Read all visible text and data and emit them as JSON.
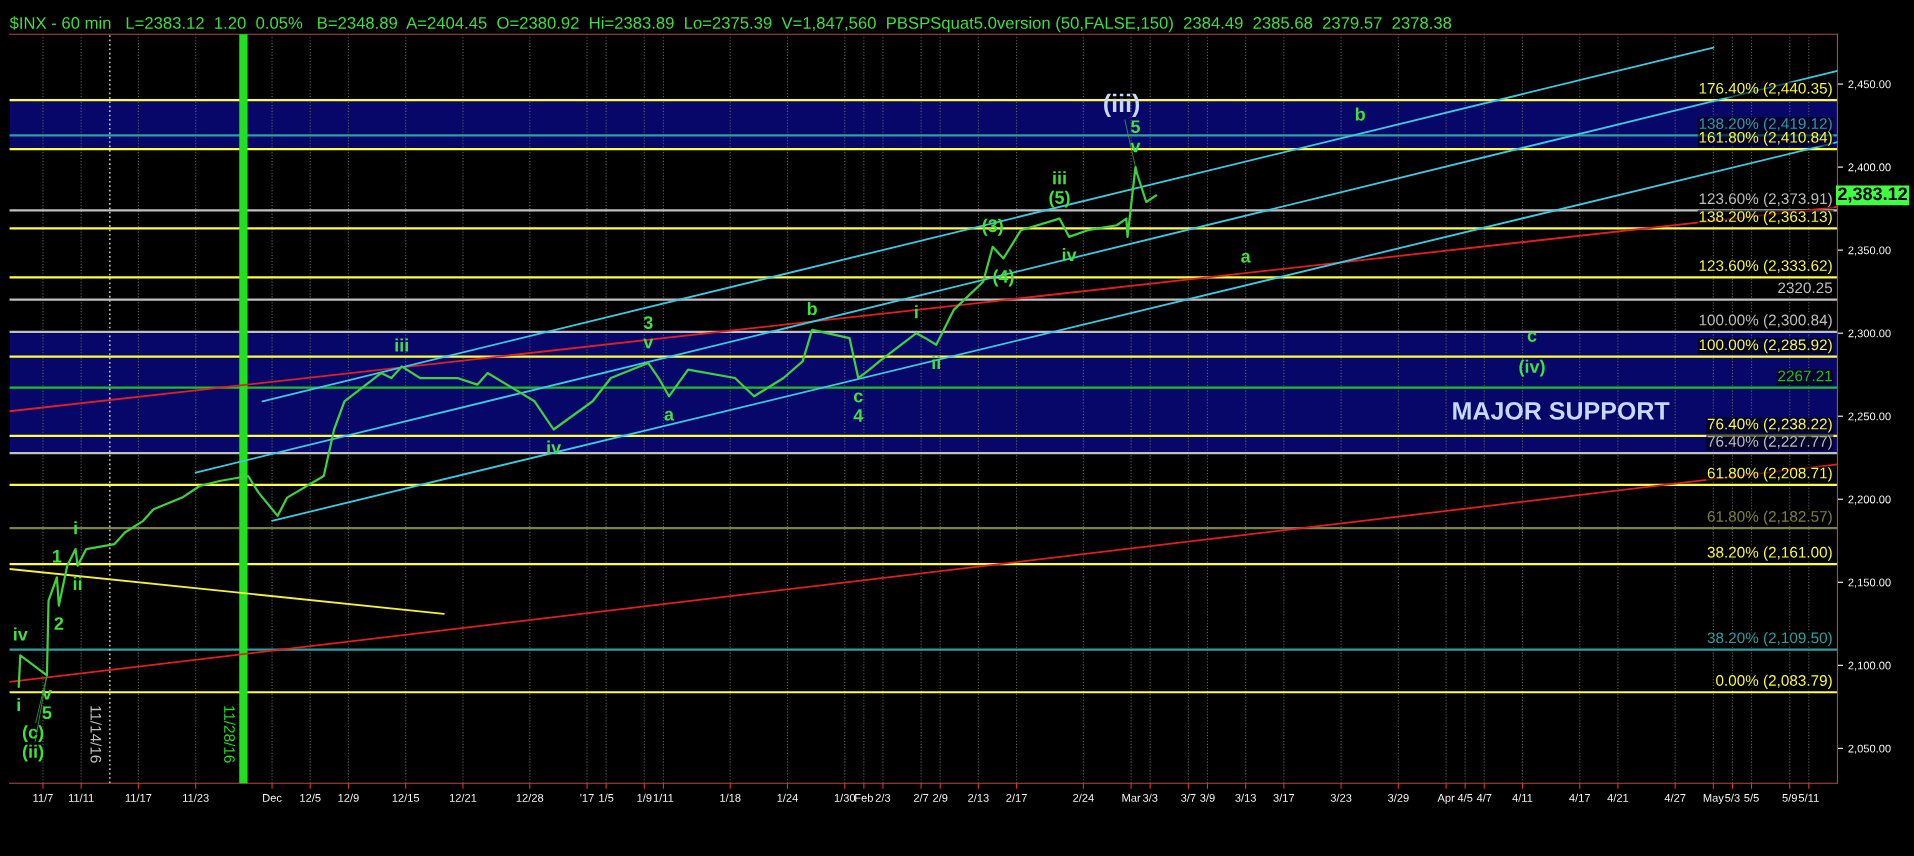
{
  "chart_data": {
    "type": "line",
    "title": "$INX - 60 min   L=2383.12  1.20  0.05%   B=2348.89  A=2404.45  O=2380.92  Hi=2383.89  Lo=2375.39  V=1,847,560  PBSPSquat5.0version (50,FALSE,150)  2384.49  2385.68  2379.57  2378.38",
    "xlim": [
      "2016-11-03T12:00",
      "2017-05-14"
    ],
    "ylim": [
      2029,
      2480
    ],
    "xticks": [
      {
        "value": "2016-11-07",
        "label": "11/7"
      },
      {
        "value": "2016-11-11",
        "label": "11/11"
      },
      {
        "value": "2016-11-17",
        "label": "11/17"
      },
      {
        "value": "2016-11-23",
        "label": "11/23"
      },
      {
        "value": "2016-12-01",
        "label": "Dec"
      },
      {
        "value": "2016-12-05",
        "label": "12/5"
      },
      {
        "value": "2016-12-09",
        "label": "12/9"
      },
      {
        "value": "2016-12-15",
        "label": "12/15"
      },
      {
        "value": "2016-12-21",
        "label": "12/21"
      },
      {
        "value": "2016-12-28",
        "label": "12/28"
      },
      {
        "value": "2017-01-03",
        "label": "'17"
      },
      {
        "value": "2017-01-05",
        "label": "1/5"
      },
      {
        "value": "2017-01-09",
        "label": "1/9"
      },
      {
        "value": "2017-01-11",
        "label": "1/11"
      },
      {
        "value": "2017-01-18",
        "label": "1/18"
      },
      {
        "value": "2017-01-24",
        "label": "1/24"
      },
      {
        "value": "2017-01-30",
        "label": "1/30"
      },
      {
        "value": "2017-02-01",
        "label": "Feb"
      },
      {
        "value": "2017-02-03",
        "label": "2/3"
      },
      {
        "value": "2017-02-07",
        "label": "2/7"
      },
      {
        "value": "2017-02-09",
        "label": "2/9"
      },
      {
        "value": "2017-02-13",
        "label": "2/13"
      },
      {
        "value": "2017-02-17",
        "label": "2/17"
      },
      {
        "value": "2017-02-24",
        "label": "2/24"
      },
      {
        "value": "2017-03-01",
        "label": "Mar"
      },
      {
        "value": "2017-03-03",
        "label": "3/3"
      },
      {
        "value": "2017-03-07",
        "label": "3/7"
      },
      {
        "value": "2017-03-09",
        "label": "3/9"
      },
      {
        "value": "2017-03-13",
        "label": "3/13"
      },
      {
        "value": "2017-03-17",
        "label": "3/17"
      },
      {
        "value": "2017-03-23",
        "label": "3/23"
      },
      {
        "value": "2017-03-29",
        "label": "3/29"
      },
      {
        "value": "2017-04-03",
        "label": "Apr"
      },
      {
        "value": "2017-04-05",
        "label": "4/5"
      },
      {
        "value": "2017-04-07",
        "label": "4/7"
      },
      {
        "value": "2017-04-11",
        "label": "4/11"
      },
      {
        "value": "2017-04-17",
        "label": "4/17"
      },
      {
        "value": "2017-04-21",
        "label": "4/21"
      },
      {
        "value": "2017-04-27",
        "label": "4/27"
      },
      {
        "value": "2017-05-01",
        "label": "May"
      },
      {
        "value": "2017-05-03",
        "label": "5/3"
      },
      {
        "value": "2017-05-05",
        "label": "5/5"
      },
      {
        "value": "2017-05-09",
        "label": "5/9"
      },
      {
        "value": "2017-05-11",
        "label": "5/11"
      }
    ],
    "yticks": [
      {
        "value": 2050,
        "label": "2,050.00"
      },
      {
        "value": 2100,
        "label": "2,100.00"
      },
      {
        "value": 2150,
        "label": "2,150.00"
      },
      {
        "value": 2200,
        "label": "2,200.00"
      },
      {
        "value": 2250,
        "label": "2,250.00"
      },
      {
        "value": 2300,
        "label": "2,300.00"
      },
      {
        "value": 2350,
        "label": "2,350.00"
      },
      {
        "value": 2400,
        "label": "2,400.00"
      },
      {
        "value": 2450,
        "label": "2,450.00"
      }
    ],
    "grid": "x",
    "marker": "none",
    "line_style": "solid",
    "series": [
      {
        "color": "#40d040",
        "x": [
          "2016-11-04T11:00",
          "2016-11-04T15:00",
          "2016-11-07T10:00",
          "2016-11-07T14:00",
          "2016-11-08T11:00",
          "2016-11-08T16:00",
          "2016-11-09T13:00",
          "2016-11-10T10:00",
          "2016-11-10T15:00",
          "2016-11-11T13:00",
          "2016-11-14T12:00",
          "2016-11-15T14:00",
          "2016-11-17T12:00",
          "2016-11-18T14:00",
          "2016-11-21T14:00",
          "2016-11-23T10:00",
          "2016-11-25T12:00",
          "2016-11-28T12:00",
          "2016-11-29T14:00",
          "2016-12-01T14:00",
          "2016-12-02T14:00",
          "2016-12-06T10:00",
          "2016-12-07T12:00",
          "2016-12-08T14:00",
          "2016-12-12T10:00",
          "2016-12-13T12:00",
          "2016-12-14T14:00",
          "2016-12-16T12:00",
          "2016-12-20T10:00",
          "2016-12-22T12:00",
          "2016-12-23T14:00",
          "2016-12-28T12:00",
          "2016-12-30T12:00",
          "2017-01-03T14:00",
          "2017-01-05T12:00",
          "2017-01-09T10:00",
          "2017-01-10T12:00",
          "2017-01-11T14:00",
          "2017-01-13T14:00",
          "2017-01-18T12:00",
          "2017-01-20T12:00",
          "2017-01-23T14:00",
          "2017-01-25T14:00",
          "2017-01-26T14:00",
          "2017-01-30T12:00",
          "2017-01-31T10:00",
          "2017-02-01T14:00",
          "2017-02-02T15:00",
          "2017-02-06T12:00",
          "2017-02-07T11:00",
          "2017-02-08T14:00",
          "2017-02-10T10:00",
          "2017-02-13T12:00",
          "2017-02-14T12:00",
          "2017-02-15T15:00",
          "2017-02-17T11:00",
          "2017-02-21T12:00",
          "2017-02-22T12:00",
          "2017-02-24T11:00",
          "2017-02-27T12:00",
          "2017-02-28T12:00",
          "2017-02-28T15:00",
          "2017-03-01T11:00",
          "2017-03-01T15:00",
          "2017-03-02T14:00",
          "2017-03-03T15:00"
        ],
        "values": [
          2087,
          2106,
          2094,
          2139,
          2153,
          2136,
          2160,
          2170,
          2160,
          2170,
          2173,
          2180,
          2187,
          2194,
          2201,
          2208,
          2211,
          2214,
          2204,
          2190,
          2201,
          2214,
          2242,
          2259,
          2276,
          2273,
          2280,
          2273,
          2273,
          2269,
          2276,
          2259,
          2242,
          2259,
          2273,
          2282,
          2273,
          2262,
          2278,
          2273,
          2262,
          2273,
          2283,
          2302,
          2297,
          2273,
          2278,
          2283,
          2300,
          2297,
          2293,
          2314,
          2331,
          2352,
          2345,
          2362,
          2369,
          2358,
          2362,
          2365,
          2369,
          2358,
          2400,
          2396,
          2379,
          2383
        ]
      },
      {
        "type": "line",
        "color": "#e02020",
        "x": [
          "2016-11-03T12:00",
          "2017-05-14"
        ],
        "values": [
          2253,
          2376
        ]
      },
      {
        "type": "line",
        "color": "#e02020",
        "x": [
          "2016-11-03T12:00",
          "2017-05-14"
        ],
        "values": [
          2090,
          2221
        ]
      },
      {
        "type": "line",
        "color": "#f0f040",
        "x": [
          "2016-11-03T12:00",
          "2016-12-19"
        ],
        "values": [
          2158,
          2131
        ]
      },
      {
        "type": "line",
        "color": "#40c8e0",
        "x": [
          "2016-11-30",
          "2017-05-01"
        ],
        "values": [
          2259,
          2472
        ]
      },
      {
        "type": "line",
        "color": "#40c8e0",
        "x": [
          "2016-11-23",
          "2017-05-14"
        ],
        "values": [
          2216,
          2458
        ]
      },
      {
        "type": "line",
        "color": "#40c8e0",
        "x": [
          "2016-12-01",
          "2017-05-14"
        ],
        "values": [
          2187,
          2415
        ]
      }
    ],
    "bands": [
      {
        "axis": "y",
        "from": 2410.84,
        "to": 2440.35,
        "color": "#0a0a8c"
      },
      {
        "axis": "y",
        "from": 2227.77,
        "to": 2300.84,
        "color": "#0a0a8c"
      }
    ],
    "ref_lines": [
      {
        "axis": "y",
        "value": 2440.35,
        "label": "176.40% (2,440.35)",
        "color": "#ffff40"
      },
      {
        "axis": "y",
        "value": 2419.12,
        "label": "138.20% (2,419.12)",
        "color": "#2f9f9f"
      },
      {
        "axis": "y",
        "value": 2410.84,
        "label": "161.80% (2,410.84)",
        "color": "#ffff40"
      },
      {
        "axis": "y",
        "value": 2373.91,
        "label": "123.60% (2,373.91)",
        "color": "#c0c0c0"
      },
      {
        "axis": "y",
        "value": 2363.13,
        "label": "138.20% (2,363.13)",
        "color": "#ffff40"
      },
      {
        "axis": "y",
        "value": 2333.62,
        "label": "123.60% (2,333.62)",
        "color": "#ffff40"
      },
      {
        "axis": "y",
        "value": 2320.25,
        "label": "2320.25",
        "color": "#c0c0c0"
      },
      {
        "axis": "y",
        "value": 2300.84,
        "label": "100.00% (2,300.84)",
        "color": "#c0c0c0"
      },
      {
        "axis": "y",
        "value": 2285.92,
        "label": "100.00% (2,285.92)",
        "color": "#ffff40"
      },
      {
        "axis": "y",
        "value": 2267.21,
        "label": "2267.21",
        "color": "#20c020"
      },
      {
        "axis": "y",
        "value": 2238.22,
        "label": "76.40% (2,238.22)",
        "color": "#ffff40"
      },
      {
        "axis": "y",
        "value": 2227.77,
        "label": "76.40% (2,227.77)",
        "color": "#c0c0c0"
      },
      {
        "axis": "y",
        "value": 2208.71,
        "label": "61.80% (2,208.71)",
        "color": "#ffff40"
      },
      {
        "axis": "y",
        "value": 2182.57,
        "label": "61.80% (2,182.57)",
        "color": "#808040"
      },
      {
        "axis": "y",
        "value": 2161.0,
        "label": "38.20% (2,161.00)",
        "color": "#ffff40"
      },
      {
        "axis": "y",
        "value": 2109.5,
        "label": "38.20% (2,109.50)",
        "color": "#2f9f9f"
      },
      {
        "axis": "y",
        "value": 2083.79,
        "label": "0.00% (2,083.79)",
        "color": "#ffff40"
      },
      {
        "axis": "x",
        "value": "2016-11-14",
        "label": "11/14/16",
        "color": "#c0c0c0",
        "line_style": "dotted"
      },
      {
        "axis": "x",
        "value": "2016-11-28",
        "label": "11/28/16",
        "color": "#20e020",
        "line_style": "solid"
      }
    ],
    "annotations": [
      {
        "text": "v",
        "x": "2017-03-01T11:00",
        "y": 2400
      },
      {
        "text": "5",
        "x": "2017-03-01T11:00",
        "y": 2400
      },
      {
        "text": "(iii)",
        "x": "2017-03-01T11:00",
        "y": 2400
      },
      {
        "text": "b",
        "x": "2017-03-25",
        "y": 2419.12
      },
      {
        "text": "(5)",
        "x": "2017-02-21T12:00",
        "y": 2369
      },
      {
        "text": "iii",
        "x": "2017-02-21T12:00",
        "y": 2369
      },
      {
        "text": "(3)",
        "x": "2017-02-14T12:00",
        "y": 2352
      },
      {
        "text": "(4)",
        "x": "2017-02-15T15:00",
        "y": 2345
      },
      {
        "text": "iv",
        "x": "2017-02-22T12:00",
        "y": 2358
      },
      {
        "text": "a",
        "x": "2017-03-13",
        "y": 2333.62
      },
      {
        "text": "c",
        "x": "2017-04-12",
        "y": 2285.92
      },
      {
        "text": "(iv)",
        "x": "2017-04-12",
        "y": 2267.21
      },
      {
        "text": "MAJOR SUPPORT",
        "x": "2017-04-15",
        "y": 2238.22
      },
      {
        "text": "iii",
        "x": "2016-12-14T14:00",
        "y": 2280
      },
      {
        "text": "v",
        "x": "2017-01-09T10:00",
        "y": 2282
      },
      {
        "text": "3",
        "x": "2017-01-09T10:00",
        "y": 2282
      },
      {
        "text": "b",
        "x": "2017-01-26T14:00",
        "y": 2302
      },
      {
        "text": "i",
        "x": "2017-02-06T12:00",
        "y": 2300
      },
      {
        "text": "a",
        "x": "2017-01-11T14:00",
        "y": 2262
      },
      {
        "text": "c",
        "x": "2017-01-31T10:00",
        "y": 2273
      },
      {
        "text": "4",
        "x": "2017-01-31T10:00",
        "y": 2273
      },
      {
        "text": "ii",
        "x": "2017-02-08T14:00",
        "y": 2293
      },
      {
        "text": "iv",
        "x": "2016-12-30T12:00",
        "y": 2242
      },
      {
        "text": "i",
        "x": "2016-11-10T10:00",
        "y": 2170
      },
      {
        "text": "1",
        "x": "2016-11-08T11:00",
        "y": 2153
      },
      {
        "text": "ii",
        "x": "2016-11-10T15:00",
        "y": 2160
      },
      {
        "text": "2",
        "x": "2016-11-08T16:00",
        "y": 2136
      },
      {
        "text": "iv",
        "x": "2016-11-04T15:00",
        "y": 2106
      },
      {
        "text": "i",
        "x": "2016-11-04T11:00",
        "y": 2087
      },
      {
        "text": "v",
        "x": "2016-11-07T10:00",
        "y": 2094
      },
      {
        "text": "5",
        "x": "2016-11-07T10:00",
        "y": 2094
      },
      {
        "text": "(c)",
        "x": "2016-11-07T10:00",
        "y": 2094
      },
      {
        "text": "(ii)",
        "x": "2016-11-07T10:00",
        "y": 2094
      },
      "2,383.12"
    ]
  }
}
